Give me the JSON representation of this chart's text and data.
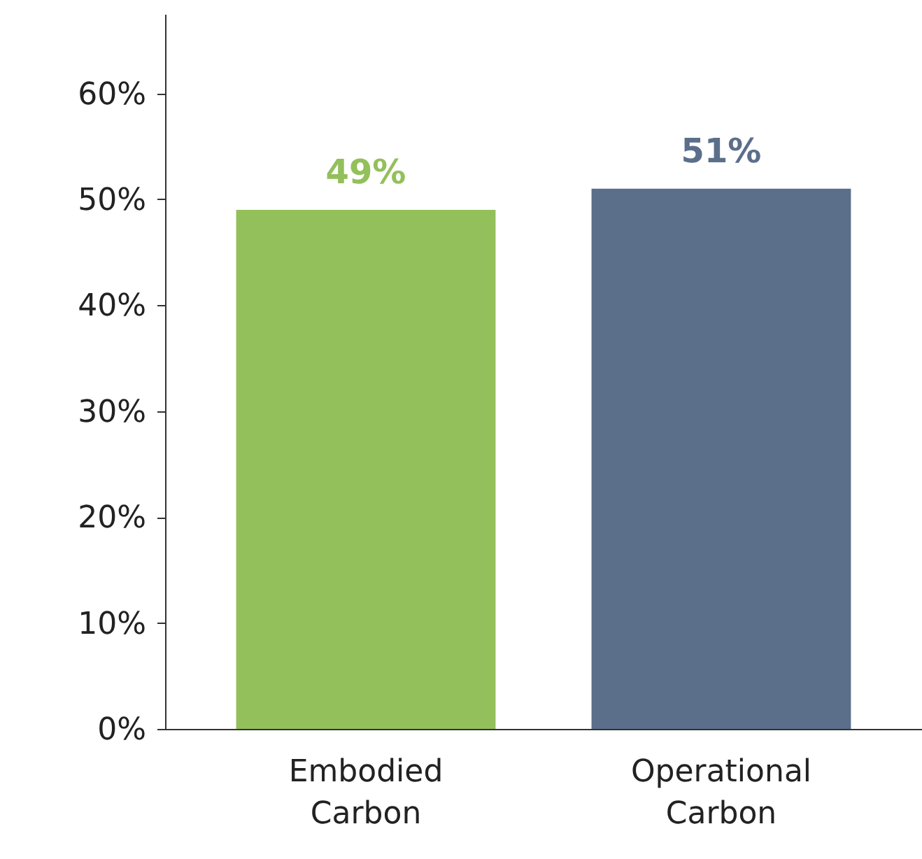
{
  "chart_data": {
    "type": "bar",
    "categories": [
      "Embodied Carbon",
      "Operational Carbon"
    ],
    "values": [
      49,
      51
    ],
    "colors": [
      "#93c05a",
      "#5b6f8a"
    ],
    "value_labels": [
      "49%",
      "51%"
    ],
    "ylim": [
      0,
      67.5
    ],
    "yticks": [
      {
        "value": 0,
        "label": "0%"
      },
      {
        "value": 10,
        "label": "10%"
      },
      {
        "value": 20,
        "label": "20%"
      },
      {
        "value": 30,
        "label": "30%"
      },
      {
        "value": 40,
        "label": "40%"
      },
      {
        "value": 50,
        "label": "50%"
      },
      {
        "value": 60,
        "label": "60%"
      }
    ],
    "grid": false
  }
}
